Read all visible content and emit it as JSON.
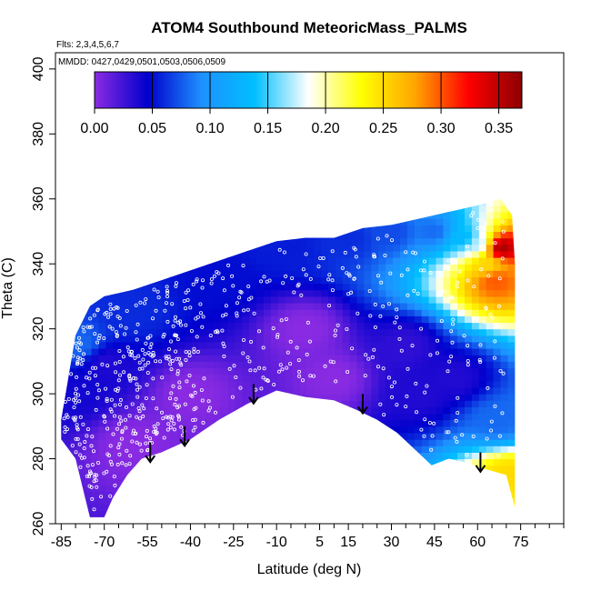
{
  "chart_data": {
    "type": "heatmap",
    "title": "ATOM4 Southbound MeteoricMass_PALMS",
    "flights_note": "Flts: 2,3,4,5,6,7",
    "dates_note": "MMDD: 0427,0429,0501,0503,0506,0509",
    "xlabel": "Latitude (deg N)",
    "ylabel": "Theta (C)",
    "xlim": [
      -87,
      90
    ],
    "ylim": [
      260,
      405
    ],
    "x_ticks": [
      -85,
      -70,
      -55,
      -40,
      -25,
      -10,
      5,
      15,
      30,
      45,
      60,
      75
    ],
    "x_tick_labels": [
      "-85",
      "-70",
      "-55",
      "-40",
      "-25",
      "-10",
      "5",
      "15",
      "30",
      "45",
      "60",
      "75"
    ],
    "y_ticks": [
      260,
      280,
      300,
      320,
      340,
      360,
      380,
      400
    ],
    "y_tick_labels": [
      "260",
      "280",
      "300",
      "320",
      "340",
      "360",
      "380",
      "400"
    ],
    "colorbar": {
      "range": [
        0,
        0.37
      ],
      "ticks": [
        0.0,
        0.05,
        0.1,
        0.15,
        0.2,
        0.25,
        0.3,
        0.35
      ],
      "tick_labels": [
        "0.00",
        "0.05",
        "0.10",
        "0.15",
        "0.20",
        "0.25",
        "0.30",
        "0.35"
      ],
      "colors": [
        "#8a2be2",
        "#0000cd",
        "#1e90ff",
        "#00bfff",
        "#ffffff",
        "#ffff00",
        "#ffa500",
        "#ff0000",
        "#8b0000"
      ]
    },
    "domain_upper": [
      [
        -85,
        292
      ],
      [
        -80,
        318
      ],
      [
        -75,
        327
      ],
      [
        -70,
        330
      ],
      [
        -60,
        332
      ],
      [
        -50,
        335
      ],
      [
        -40,
        338
      ],
      [
        -30,
        341
      ],
      [
        -20,
        344
      ],
      [
        -10,
        347
      ],
      [
        0,
        348
      ],
      [
        10,
        348
      ],
      [
        20,
        351
      ],
      [
        30,
        352
      ],
      [
        40,
        354
      ],
      [
        50,
        356
      ],
      [
        60,
        358
      ],
      [
        68,
        360
      ],
      [
        72,
        355
      ],
      [
        73,
        340
      ],
      [
        73,
        300
      ]
    ],
    "domain_lower": [
      [
        -85,
        286
      ],
      [
        -80,
        280
      ],
      [
        -75,
        262
      ],
      [
        -70,
        262
      ],
      [
        -67,
        268
      ],
      [
        -62,
        275
      ],
      [
        -57,
        280
      ],
      [
        -50,
        282
      ],
      [
        -40,
        286
      ],
      [
        -30,
        292
      ],
      [
        -20,
        297
      ],
      [
        -10,
        301
      ],
      [
        0,
        299
      ],
      [
        10,
        298
      ],
      [
        18,
        295
      ],
      [
        25,
        292
      ],
      [
        32,
        288
      ],
      [
        38,
        283
      ],
      [
        44,
        278
      ],
      [
        50,
        280
      ],
      [
        55,
        279
      ],
      [
        62,
        277
      ],
      [
        70,
        275
      ],
      [
        73,
        265
      ]
    ],
    "value_points": [
      {
        "lat": 68,
        "theta": 345,
        "value": 0.36
      },
      {
        "lat": 66,
        "theta": 335,
        "value": 0.3
      },
      {
        "lat": 63,
        "theta": 340,
        "value": 0.25
      },
      {
        "lat": 60,
        "theta": 346,
        "value": 0.17
      },
      {
        "lat": 55,
        "theta": 348,
        "value": 0.13
      },
      {
        "lat": 45,
        "theta": 350,
        "value": 0.08
      },
      {
        "lat": 30,
        "theta": 350,
        "value": 0.07
      },
      {
        "lat": 15,
        "theta": 348,
        "value": 0.06
      },
      {
        "lat": -5,
        "theta": 345,
        "value": 0.055
      },
      {
        "lat": -30,
        "theta": 335,
        "value": 0.05
      },
      {
        "lat": -60,
        "theta": 325,
        "value": 0.06
      },
      {
        "lat": -78,
        "theta": 315,
        "value": 0.08
      },
      {
        "lat": -80,
        "theta": 300,
        "value": 0.04
      },
      {
        "lat": -70,
        "theta": 310,
        "value": 0.035
      },
      {
        "lat": 35,
        "theta": 315,
        "value": 0.03
      },
      {
        "lat": 40,
        "theta": 300,
        "value": 0.035
      },
      {
        "lat": 52,
        "theta": 305,
        "value": 0.035
      },
      {
        "lat": 67,
        "theta": 292,
        "value": 0.08
      },
      {
        "lat": 71,
        "theta": 275,
        "value": 0.25
      },
      {
        "lat": 0,
        "theta": 320,
        "value": 0.0
      },
      {
        "lat": -40,
        "theta": 300,
        "value": 0.0
      },
      {
        "lat": 10,
        "theta": 305,
        "value": 0.0
      },
      {
        "lat": -60,
        "theta": 285,
        "value": 0.0
      }
    ],
    "arrows": [
      {
        "lat": -54,
        "theta_top": 285,
        "theta_bottom": 279
      },
      {
        "lat": -42,
        "theta_top": 290,
        "theta_bottom": 284
      },
      {
        "lat": -18,
        "theta_top": 303,
        "theta_bottom": 297
      },
      {
        "lat": 20,
        "theta_top": 300,
        "theta_bottom": 294
      },
      {
        "lat": 61,
        "theta_top": 282,
        "theta_bottom": 276
      }
    ]
  }
}
